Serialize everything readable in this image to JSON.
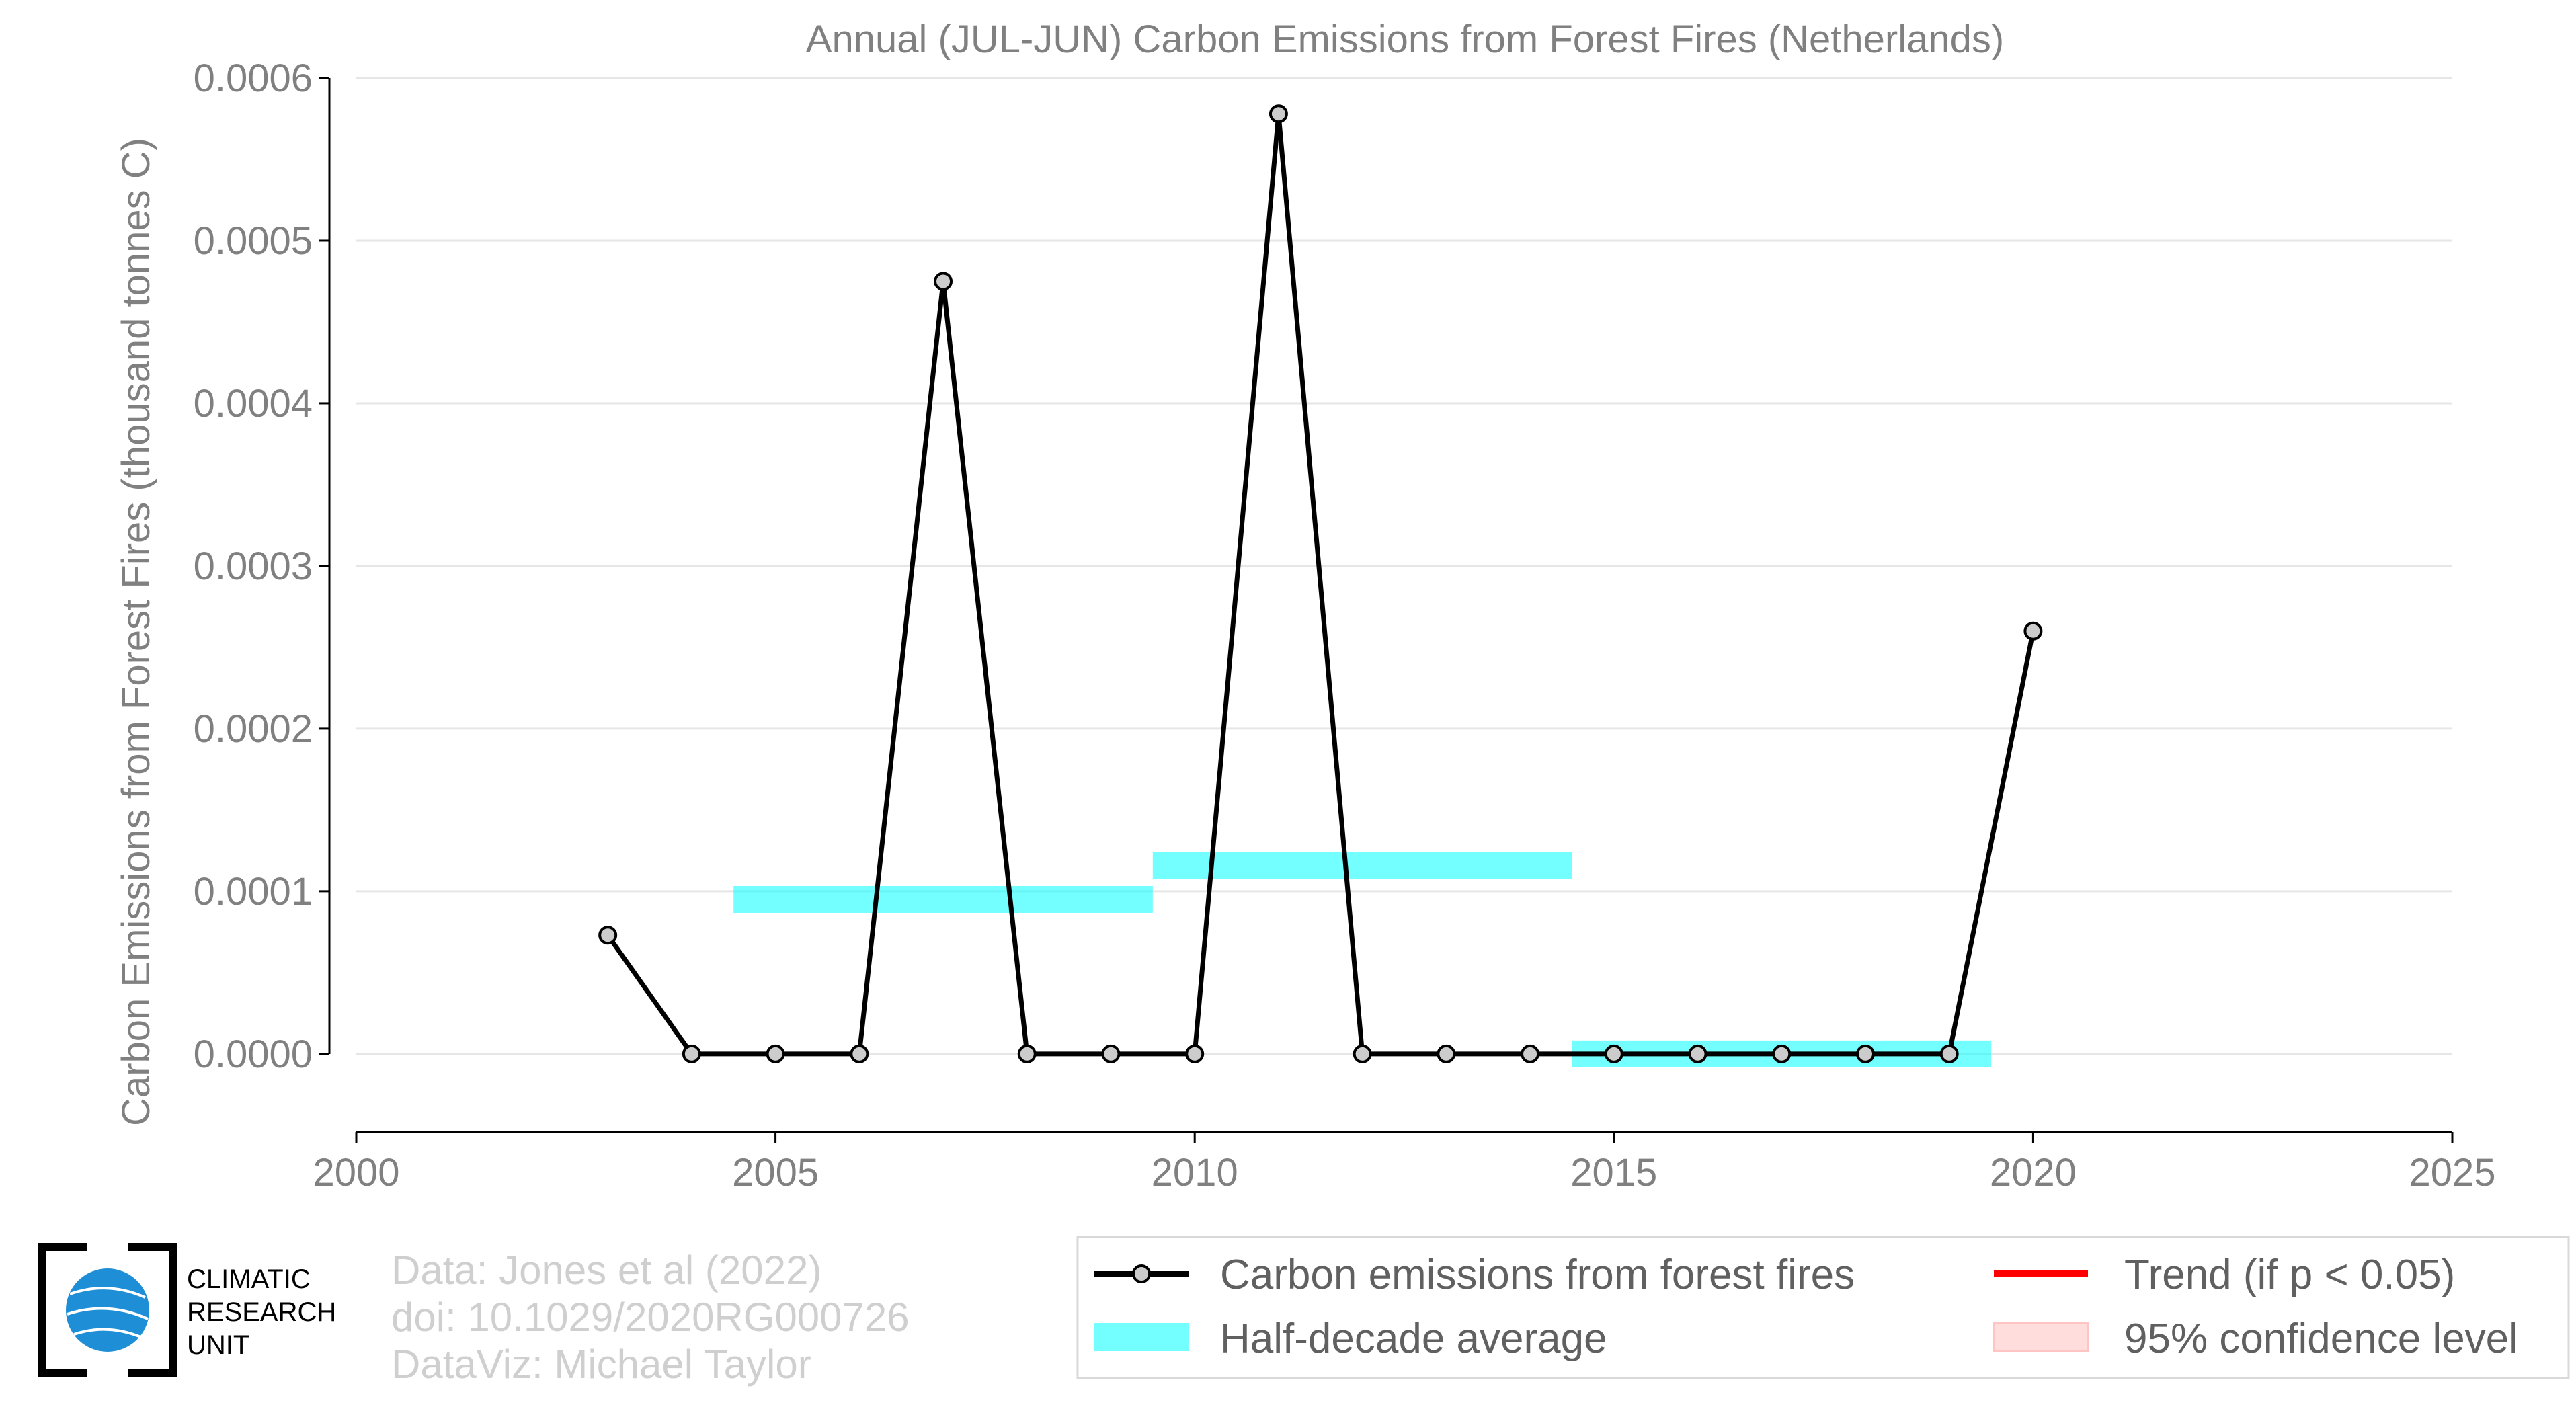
{
  "chart_data": {
    "type": "line",
    "title": "Annual (JUL-JUN) Carbon Emissions from Forest Fires (Netherlands)",
    "xlabel": "",
    "ylabel": "Carbon Emissions from Forest Fires (thousand tonnes C)",
    "xlim": [
      2000,
      2025
    ],
    "ylim": [
      -4.8e-05,
      0.0006
    ],
    "x_ticks": [
      2000,
      2005,
      2010,
      2015,
      2020,
      2025
    ],
    "y_ticks": [
      0.0,
      0.0001,
      0.0002,
      0.0003,
      0.0004,
      0.0005,
      0.0006
    ],
    "y_tick_labels": [
      "0.0000",
      "0.0001",
      "0.0002",
      "0.0003",
      "0.0004",
      "0.0005",
      "0.0006"
    ],
    "grid": "horizontal",
    "series": [
      {
        "name": "Carbon emissions from forest fires",
        "color": "#000000",
        "marker_color": "#cccccc",
        "x": [
          2003,
          2004,
          2005,
          2006,
          2007,
          2008,
          2009,
          2010,
          2011,
          2012,
          2013,
          2014,
          2015,
          2016,
          2017,
          2018,
          2019,
          2020
        ],
        "y": [
          7.3e-05,
          0.0,
          0.0,
          0.0,
          0.000475,
          0.0,
          0.0,
          0.0,
          0.000578,
          0.0,
          0.0,
          0.0,
          0.0,
          0.0,
          0.0,
          0.0,
          0.0,
          0.00026
        ]
      }
    ],
    "half_decade_averages": {
      "name": "Half-decade average",
      "color": "#00ffff",
      "segments": [
        {
          "x_start": 2004.5,
          "x_end": 2009.5,
          "y": 9.5e-05
        },
        {
          "x_start": 2009.5,
          "x_end": 2014.5,
          "y": 0.000116
        },
        {
          "x_start": 2014.5,
          "x_end": 2019.5,
          "y": 0.0
        }
      ]
    },
    "legend": {
      "placement": "bottom-right",
      "entries": [
        {
          "label": "Carbon emissions from forest fires",
          "kind": "line-marker",
          "color": "#000000"
        },
        {
          "label": "Trend (if p < 0.05)",
          "kind": "line",
          "color": "#ff0000"
        },
        {
          "label": "Half-decade average",
          "kind": "patch",
          "color": "#00ffff"
        },
        {
          "label": "95% confidence level",
          "kind": "patch",
          "color": "#ffdddd"
        }
      ]
    }
  },
  "credits": {
    "lines": [
      "Data: Jones et al (2022)",
      "doi: 10.1029/2020RG000726",
      "DataViz: Michael Taylor"
    ]
  },
  "logo": {
    "lines": [
      "CLIMATIC",
      "RESEARCH",
      "UNIT"
    ],
    "globe_color": "#1e8fd6"
  }
}
